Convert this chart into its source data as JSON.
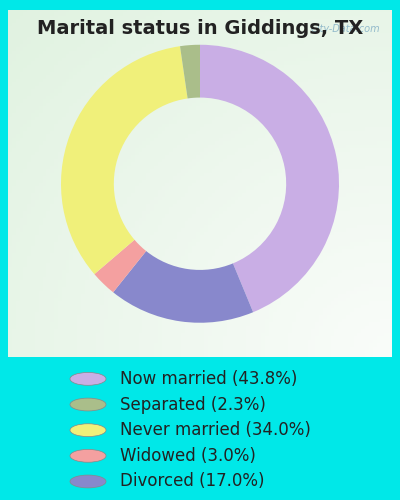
{
  "title": "Marital status in Giddings, TX",
  "slices": [
    43.8,
    2.3,
    34.0,
    3.0,
    17.0
  ],
  "labels": [
    "Now married (43.8%)",
    "Separated (2.3%)",
    "Never married (34.0%)",
    "Widowed (3.0%)",
    "Divorced (17.0%)"
  ],
  "colors": [
    "#c9aee5",
    "#aabe8a",
    "#f0f07a",
    "#f4a0a0",
    "#8888cc"
  ],
  "bg_color": "#00e8e8",
  "chart_bg_left": "#c8e8d8",
  "chart_bg_right": "#e8f5ee",
  "watermark": "City-Data.com",
  "title_fontsize": 14,
  "legend_fontsize": 12,
  "donut_width": 0.38,
  "startangle": 90,
  "slice_order": [
    0,
    4,
    3,
    2,
    1
  ]
}
